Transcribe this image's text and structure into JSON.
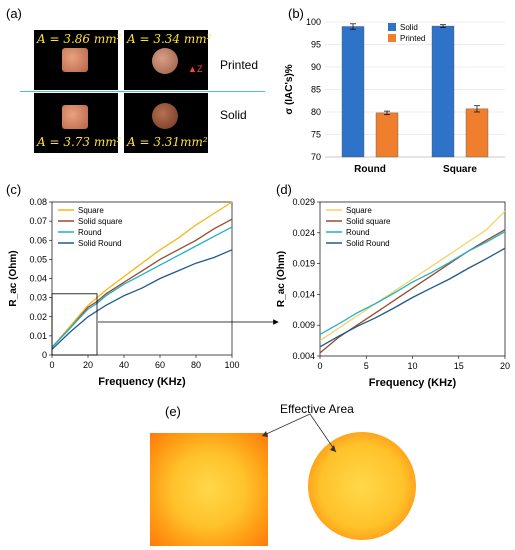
{
  "panels": {
    "a": {
      "label": "(a)",
      "tiles": [
        {
          "area": "A = 3.86 mm²",
          "shape": "square",
          "row": "printed"
        },
        {
          "area": "A = 3.34 mm²",
          "shape": "round",
          "row": "printed"
        },
        {
          "area": "A = 3.73 mm²",
          "shape": "square",
          "row": "solid"
        },
        {
          "area": "A = 3.31mm²",
          "shape": "round",
          "row": "solid"
        }
      ],
      "printed_label": "Printed",
      "solid_label": "Solid",
      "axis_marker": "Z",
      "divider_color": "#4fc3c8"
    },
    "b": {
      "label": "(b)"
    },
    "c": {
      "label": "(c)"
    },
    "d": {
      "label": "(d)"
    },
    "e": {
      "label": "(e)",
      "annotation": "Effective Area"
    }
  },
  "chart_data": [
    {
      "panel": "b",
      "type": "bar",
      "categories": [
        "Round",
        "Square"
      ],
      "series": [
        {
          "name": "Solid",
          "color": "#2f73c9",
          "values": [
            99.0,
            99.1
          ],
          "errors": [
            0.6,
            0.3
          ]
        },
        {
          "name": "Printed",
          "color": "#f07f2d",
          "values": [
            79.8,
            80.7
          ],
          "errors": [
            0.4,
            0.7
          ]
        }
      ],
      "ylabel": "σ (IAC's)%",
      "ylim": [
        70,
        100
      ],
      "yticks": [
        "70",
        "75",
        "80",
        "85",
        "90",
        "95",
        "100"
      ],
      "legend": "top-right"
    },
    {
      "panel": "c",
      "type": "line",
      "xlabel": "Frequency (KHz)",
      "ylabel": "R_ac (Ohm)",
      "xlim": [
        0,
        100
      ],
      "ylim": [
        0,
        0.08
      ],
      "xticks": [
        "0",
        "20",
        "40",
        "60",
        "80",
        "100"
      ],
      "yticks": [
        "0",
        "0.01",
        "0.02",
        "0.03",
        "0.04",
        "0.05",
        "0.06",
        "0.07",
        "0.08"
      ],
      "x": [
        0,
        10,
        20,
        25,
        30,
        40,
        50,
        60,
        70,
        80,
        90,
        100
      ],
      "series": [
        {
          "name": "Square",
          "color": "#f3b81a",
          "values": [
            0.004,
            0.015,
            0.026,
            0.03,
            0.034,
            0.041,
            0.048,
            0.055,
            0.061,
            0.068,
            0.074,
            0.08
          ]
        },
        {
          "name": "Solid square",
          "color": "#9a4a2a",
          "values": [
            0.004,
            0.014,
            0.025,
            0.028,
            0.032,
            0.038,
            0.044,
            0.05,
            0.055,
            0.06,
            0.066,
            0.071
          ]
        },
        {
          "name": "Round",
          "color": "#1fb1c9",
          "values": [
            0.004,
            0.014,
            0.024,
            0.027,
            0.031,
            0.037,
            0.042,
            0.047,
            0.052,
            0.057,
            0.062,
            0.067
          ]
        },
        {
          "name": "Solid Round",
          "color": "#1f5a8a",
          "values": [
            0.003,
            0.012,
            0.02,
            0.023,
            0.026,
            0.031,
            0.035,
            0.04,
            0.044,
            0.048,
            0.051,
            0.055
          ]
        }
      ],
      "legend": "top-left"
    },
    {
      "panel": "d",
      "type": "line",
      "xlabel": "Frequency (KHz)",
      "ylabel": "R_ac (Ohm)",
      "xlim": [
        0,
        20
      ],
      "ylim": [
        0.004,
        0.029
      ],
      "xticks": [
        "0",
        "5",
        "10",
        "15",
        "20"
      ],
      "yticks": [
        "0.004",
        "0.009",
        "0.014",
        "0.019",
        "0.024",
        "0.029"
      ],
      "x": [
        0,
        2,
        4,
        6,
        8,
        10,
        12,
        14,
        16,
        18,
        20
      ],
      "series": [
        {
          "name": "Square",
          "color": "#f3d36a",
          "values": [
            0.0065,
            0.0085,
            0.0105,
            0.0125,
            0.0145,
            0.0165,
            0.0185,
            0.0205,
            0.0225,
            0.0245,
            0.0275
          ]
        },
        {
          "name": "Solid square",
          "color": "#9a4a2a",
          "values": [
            0.0045,
            0.007,
            0.009,
            0.011,
            0.013,
            0.015,
            0.017,
            0.019,
            0.021,
            0.0228,
            0.0245
          ]
        },
        {
          "name": "Round",
          "color": "#1fb1c9",
          "values": [
            0.0075,
            0.0092,
            0.011,
            0.0125,
            0.0142,
            0.016,
            0.0175,
            0.0192,
            0.021,
            0.0225,
            0.0242
          ]
        },
        {
          "name": "Solid Round",
          "color": "#1f5a8a",
          "values": [
            0.0055,
            0.0072,
            0.0088,
            0.0102,
            0.0118,
            0.0135,
            0.015,
            0.0165,
            0.0182,
            0.0198,
            0.0215
          ]
        }
      ],
      "legend": "top-left"
    }
  ]
}
